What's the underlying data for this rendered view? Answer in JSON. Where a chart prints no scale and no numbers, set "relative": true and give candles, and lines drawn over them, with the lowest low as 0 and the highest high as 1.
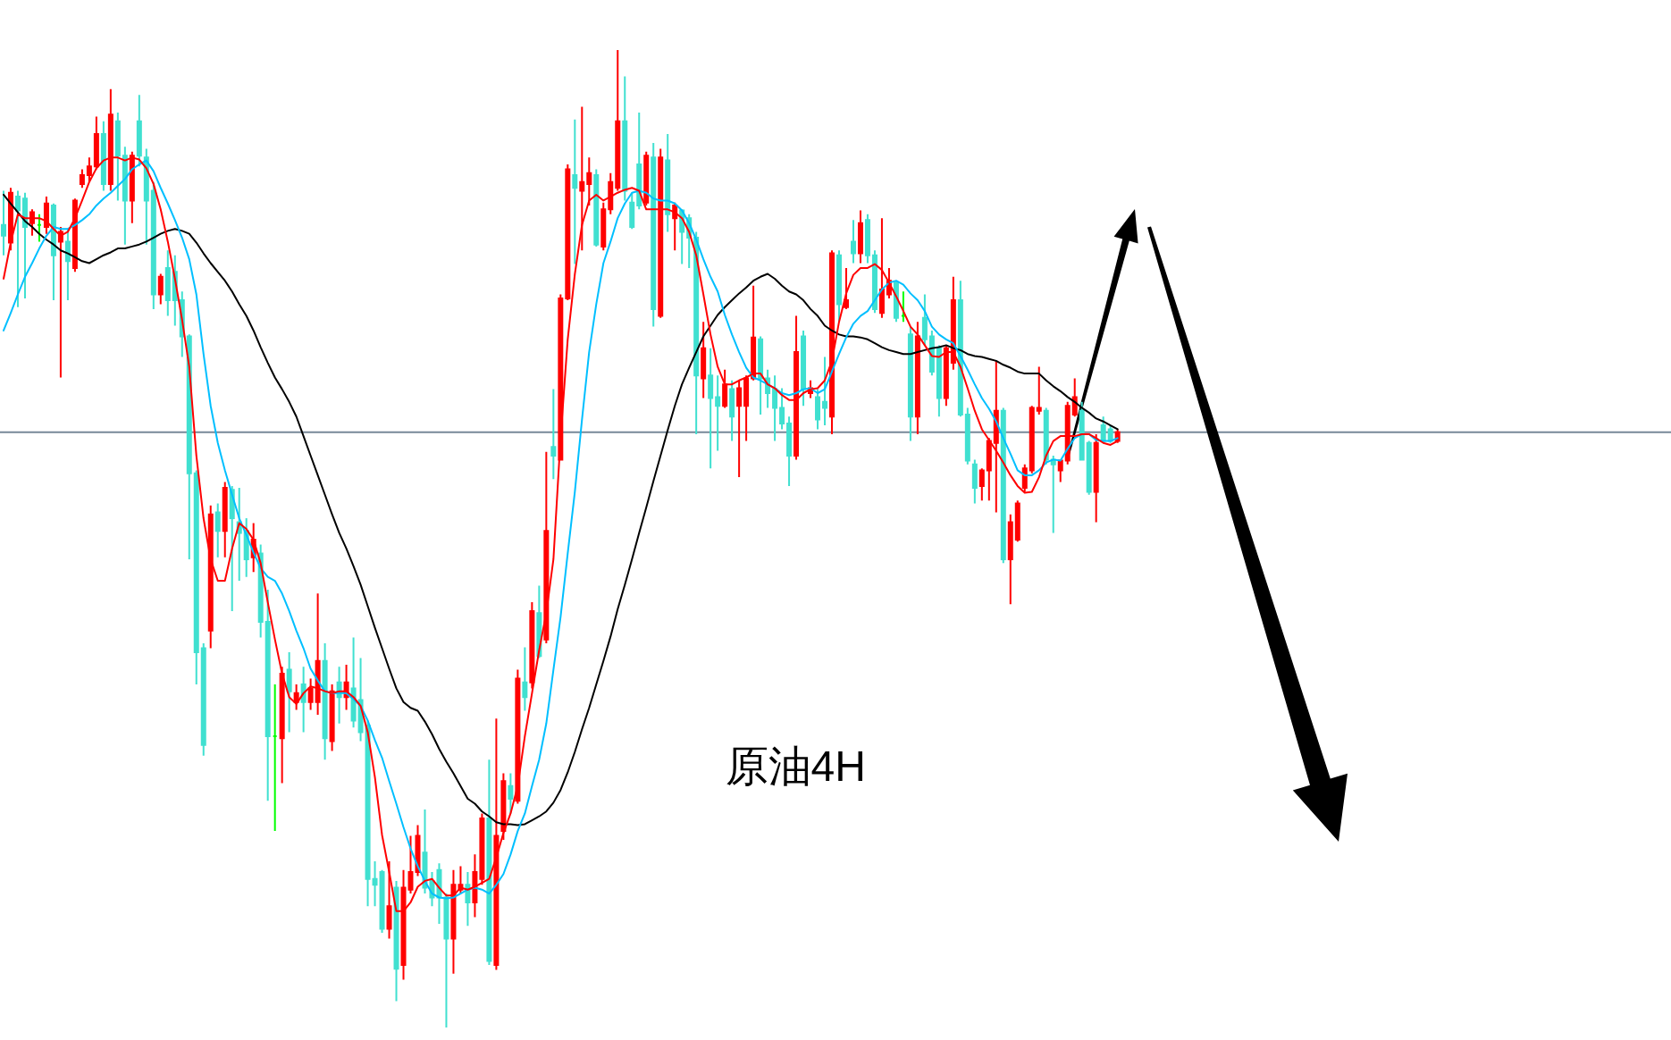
{
  "chart_data": {
    "type": "candlestick",
    "relative": true,
    "categories": [
      null,
      null,
      null,
      null,
      null,
      null,
      null,
      null,
      null,
      null,
      null,
      null,
      null,
      null,
      null,
      null,
      null,
      null,
      null,
      null,
      null,
      null,
      null,
      null,
      null,
      null,
      null,
      null,
      null,
      null,
      null,
      null,
      null,
      null,
      null,
      null,
      null,
      null,
      null,
      null,
      null,
      null,
      null,
      null,
      null,
      null,
      null,
      null,
      null,
      null,
      null,
      null,
      null,
      null,
      null,
      null,
      null,
      null,
      null,
      null,
      null,
      null,
      null,
      null,
      null,
      null,
      null,
      null,
      null,
      null,
      null,
      null,
      null,
      null,
      null,
      null,
      null,
      null,
      null,
      null,
      null,
      null,
      null,
      null,
      null,
      null,
      null,
      null,
      null,
      null,
      null,
      null,
      null,
      null,
      null,
      null,
      null,
      null,
      null,
      null,
      null,
      null,
      null,
      null,
      null,
      null,
      null,
      null,
      null,
      null,
      null,
      null,
      null,
      null,
      null,
      null,
      null,
      null,
      null,
      null,
      null,
      null,
      null,
      null,
      null,
      null,
      null,
      null,
      null,
      null,
      null,
      null,
      null,
      null,
      null,
      null,
      null,
      null,
      null,
      null,
      null,
      null,
      null,
      null,
      null,
      null,
      null,
      null,
      null,
      null,
      null,
      null,
      null,
      null,
      null,
      null,
      null
    ],
    "ohlc": [
      [
        0.821,
        0.856,
        0.79,
        0.81
      ],
      [
        0.803,
        0.859,
        0.795,
        0.854
      ],
      [
        0.85,
        0.856,
        0.737,
        0.836
      ],
      [
        0.848,
        0.854,
        0.746,
        0.819
      ],
      [
        0.823,
        0.837,
        0.81,
        0.834
      ],
      [
        0.821,
        0.832,
        0.804,
        0.821
      ],
      [
        0.819,
        0.85,
        0.812,
        0.843
      ],
      [
        0.841,
        0.843,
        0.744,
        0.79
      ],
      [
        0.804,
        0.819,
        0.665,
        0.814
      ],
      [
        0.804,
        0.817,
        0.744,
        0.784
      ],
      [
        0.777,
        0.848,
        0.773,
        0.846
      ],
      [
        0.863,
        0.878,
        0.859,
        0.872
      ],
      [
        0.872,
        0.89,
        0.865,
        0.881
      ],
      [
        0.881,
        0.932,
        0.878,
        0.914
      ],
      [
        0.914,
        0.927,
        0.856,
        0.863
      ],
      [
        0.863,
        0.96,
        0.856,
        0.934
      ],
      [
        0.927,
        0.936,
        0.846,
        0.892
      ],
      [
        0.892,
        0.901,
        0.801,
        0.846
      ],
      [
        0.846,
        0.896,
        0.823,
        0.892
      ],
      [
        0.927,
        0.954,
        0.881,
        0.892
      ],
      [
        0.89,
        0.899,
        0.801,
        0.846
      ],
      [
        0.856,
        0.865,
        0.735,
        0.75
      ],
      [
        0.75,
        0.771,
        0.74,
        0.768
      ],
      [
        0.777,
        0.795,
        0.728,
        0.744
      ],
      [
        0.773,
        0.79,
        0.718,
        0.744
      ],
      [
        0.744,
        0.753,
        0.686,
        0.707
      ],
      [
        0.707,
        0.709,
        0.479,
        0.567
      ],
      [
        0.567,
        0.57,
        0.351,
        0.384
      ],
      [
        0.388,
        0.393,
        0.278,
        0.289
      ],
      [
        0.406,
        0.534,
        0.388,
        0.525
      ],
      [
        0.527,
        0.536,
        0.481,
        0.508
      ],
      [
        0.508,
        0.558,
        0.481,
        0.552
      ],
      [
        0.55,
        0.554,
        0.426,
        0.521
      ],
      [
        0.517,
        0.552,
        0.457,
        0.506
      ],
      [
        0.508,
        0.521,
        0.461,
        0.479
      ],
      [
        0.481,
        0.516,
        0.466,
        0.499
      ],
      [
        0.485,
        0.494,
        0.399,
        0.415
      ],
      [
        0.415,
        0.448,
        0.232,
        0.298
      ],
      [
        0.298,
        0.351,
        0.201,
        0.298
      ],
      [
        0.296,
        0.369,
        0.25,
        0.362
      ],
      [
        0.366,
        0.384,
        0.302,
        0.344
      ],
      [
        0.333,
        0.351,
        0.325,
        0.342
      ],
      [
        0.351,
        0.369,
        0.302,
        0.333
      ],
      [
        0.333,
        0.357,
        0.325,
        0.347
      ],
      [
        0.333,
        0.444,
        0.32,
        0.375
      ],
      [
        0.375,
        0.393,
        0.274,
        0.296
      ],
      [
        0.293,
        0.351,
        0.283,
        0.344
      ],
      [
        0.353,
        0.369,
        0.311,
        0.338
      ],
      [
        0.338,
        0.371,
        0.325,
        0.353
      ],
      [
        0.347,
        0.399,
        0.307,
        0.314
      ],
      [
        0.335,
        0.378,
        0.293,
        0.302
      ],
      [
        0.309,
        0.314,
        0.124,
        0.152
      ],
      [
        0.152,
        0.17,
        0.124,
        0.146
      ],
      [
        0.159,
        0.161,
        0.097,
        0.101
      ],
      [
        0.101,
        0.17,
        0.091,
        0.124
      ],
      [
        0.143,
        0.15,
        0.027,
        0.06
      ],
      [
        0.064,
        0.161,
        0.049,
        0.143
      ],
      [
        0.141,
        0.196,
        0.137,
        0.159
      ],
      [
        0.159,
        0.207,
        0.155,
        0.196
      ],
      [
        0.179,
        0.223,
        0.137,
        0.143
      ],
      [
        0.15,
        0.159,
        0.124,
        0.133
      ],
      [
        0.161,
        0.168,
        0.106,
        0.133
      ],
      [
        0.133,
        0.137,
        0.0,
        0.091
      ],
      [
        0.091,
        0.161,
        0.055,
        0.146
      ],
      [
        0.141,
        0.165,
        0.137,
        0.146
      ],
      [
        0.146,
        0.159,
        0.104,
        0.128
      ],
      [
        0.128,
        0.177,
        0.113,
        0.159
      ],
      [
        0.152,
        0.219,
        0.146,
        0.214
      ],
      [
        0.214,
        0.274,
        0.064,
        0.068
      ],
      [
        0.064,
        0.316,
        0.059,
        0.196
      ],
      [
        0.201,
        0.26,
        0.192,
        0.252
      ],
      [
        0.247,
        0.26,
        0.219,
        0.234
      ],
      [
        0.232,
        0.366,
        0.229,
        0.357
      ],
      [
        0.353,
        0.389,
        0.324,
        0.338
      ],
      [
        0.353,
        0.435,
        0.347,
        0.426
      ],
      [
        0.424,
        0.452,
        0.378,
        0.38
      ],
      [
        0.397,
        0.589,
        0.393,
        0.508
      ],
      [
        0.594,
        0.653,
        0.561,
        0.585
      ],
      [
        0.581,
        0.75,
        0.58,
        0.746
      ],
      [
        0.746,
        0.883,
        0.744,
        0.878
      ],
      [
        0.872,
        0.929,
        0.781,
        0.859
      ],
      [
        0.856,
        0.942,
        0.795,
        0.865
      ],
      [
        0.863,
        0.89,
        0.841,
        0.874
      ],
      [
        0.872,
        0.878,
        0.799,
        0.801
      ],
      [
        0.799,
        0.844,
        0.795,
        0.837
      ],
      [
        0.837,
        0.874,
        0.832,
        0.865
      ],
      [
        0.859,
        1.0,
        0.856,
        0.927
      ],
      [
        0.927,
        0.973,
        0.846,
        0.856
      ],
      [
        0.844,
        0.854,
        0.817,
        0.819
      ],
      [
        0.883,
        0.936,
        0.837,
        0.841
      ],
      [
        0.844,
        0.896,
        0.841,
        0.892
      ],
      [
        0.89,
        0.905,
        0.717,
        0.735
      ],
      [
        0.728,
        0.899,
        0.726,
        0.89
      ],
      [
        0.887,
        0.914,
        0.814,
        0.832
      ],
      [
        0.828,
        0.844,
        0.795,
        0.841
      ],
      [
        0.836,
        0.837,
        0.781,
        0.814
      ],
      [
        0.828,
        0.832,
        0.777,
        0.808
      ],
      [
        0.808,
        0.814,
        0.607,
        0.667
      ],
      [
        0.664,
        0.722,
        0.644,
        0.695
      ],
      [
        0.667,
        0.695,
        0.572,
        0.644
      ],
      [
        0.645,
        0.667,
        0.59,
        0.636
      ],
      [
        0.636,
        0.673,
        0.634,
        0.658
      ],
      [
        0.653,
        0.662,
        0.6,
        0.625
      ],
      [
        0.636,
        0.662,
        0.563,
        0.654
      ],
      [
        0.636,
        0.667,
        0.6,
        0.664
      ],
      [
        0.664,
        0.759,
        0.662,
        0.706
      ],
      [
        0.704,
        0.707,
        0.627,
        0.664
      ],
      [
        0.664,
        0.673,
        0.634,
        0.649
      ],
      [
        0.653,
        0.667,
        0.6,
        0.634
      ],
      [
        0.634,
        0.654,
        0.612,
        0.618
      ],
      [
        0.618,
        0.625,
        0.554,
        0.585
      ],
      [
        0.585,
        0.728,
        0.581,
        0.691
      ],
      [
        0.707,
        0.713,
        0.636,
        0.653
      ],
      [
        0.649,
        0.662,
        0.644,
        0.654
      ],
      [
        0.645,
        0.653,
        0.612,
        0.622
      ],
      [
        0.64,
        0.686,
        0.616,
        0.634
      ],
      [
        0.625,
        0.795,
        0.607,
        0.792
      ],
      [
        0.79,
        0.795,
        0.722,
        0.74
      ],
      [
        0.737,
        0.777,
        0.735,
        0.744
      ],
      [
        0.804,
        0.826,
        0.782,
        0.792
      ],
      [
        0.792,
        0.836,
        0.782,
        0.823
      ],
      [
        0.826,
        0.832,
        0.782,
        0.79
      ],
      [
        0.79,
        0.795,
        0.731,
        0.735
      ],
      [
        0.731,
        0.828,
        0.726,
        0.755
      ],
      [
        0.75,
        0.777,
        0.746,
        0.764
      ],
      [
        0.762,
        0.764,
        0.722,
        0.726
      ],
      [
        0.728,
        0.753,
        0.722,
        0.728
      ],
      [
        0.709,
        0.717,
        0.6,
        0.625
      ],
      [
        0.625,
        0.722,
        0.607,
        0.707
      ],
      [
        0.726,
        0.75,
        0.698,
        0.704
      ],
      [
        0.707,
        0.713,
        0.667,
        0.671
      ],
      [
        0.695,
        0.698,
        0.625,
        0.644
      ],
      [
        0.644,
        0.698,
        0.636,
        0.695
      ],
      [
        0.68,
        0.768,
        0.673,
        0.744
      ],
      [
        0.744,
        0.764,
        0.625,
        0.627
      ],
      [
        0.627,
        0.634,
        0.576,
        0.58
      ],
      [
        0.576,
        0.581,
        0.536,
        0.552
      ],
      [
        0.554,
        0.572,
        0.539,
        0.57
      ],
      [
        0.57,
        0.603,
        0.539,
        0.6
      ],
      [
        0.598,
        0.682,
        0.527,
        0.631
      ],
      [
        0.631,
        0.634,
        0.475,
        0.479
      ],
      [
        0.479,
        0.525,
        0.433,
        0.517
      ],
      [
        0.499,
        0.539,
        0.497,
        0.536
      ],
      [
        0.552,
        0.576,
        0.548,
        0.572
      ],
      [
        0.57,
        0.636,
        0.567,
        0.634
      ],
      [
        0.631,
        0.676,
        0.627,
        0.634
      ],
      [
        0.631,
        0.634,
        0.576,
        0.581
      ],
      [
        0.581,
        0.585,
        0.506,
        0.576
      ],
      [
        0.57,
        0.581,
        0.558,
        0.58
      ],
      [
        0.58,
        0.64,
        0.576,
        0.636
      ],
      [
        0.627,
        0.664,
        0.625,
        0.645
      ],
      [
        0.631,
        0.64,
        0.58,
        0.581
      ],
      [
        0.598,
        0.6,
        0.545,
        0.548
      ],
      [
        0.548,
        0.607,
        0.517,
        0.598
      ],
      [
        0.616,
        0.625,
        0.598,
        0.6
      ],
      [
        0.612,
        0.616,
        0.598,
        0.6
      ],
      [
        0.6,
        0.612,
        0.598,
        0.609
      ]
    ],
    "colors": [
      "#40e0d0",
      "#ff0000",
      "#40e0d0",
      "#40e0d0",
      "#ff0000",
      "#00ff00",
      "#ff0000",
      "#40e0d0",
      "#ff0000",
      "#40e0d0",
      "#ff0000",
      "#ff0000",
      "#ff0000",
      "#ff0000",
      "#40e0d0",
      "#ff0000",
      "#40e0d0",
      "#40e0d0",
      "#ff0000",
      "#40e0d0",
      "#40e0d0",
      "#40e0d0",
      "#ff0000",
      "#40e0d0",
      "#40e0d0",
      "#40e0d0",
      "#40e0d0",
      "#40e0d0",
      "#40e0d0",
      "#ff0000",
      "#40e0d0",
      "#ff0000",
      "#40e0d0",
      "#40e0d0",
      "#40e0d0",
      "#ff0000",
      "#40e0d0",
      "#40e0d0",
      "#00ff00",
      "#ff0000",
      "#40e0d0",
      "#ff0000",
      "#40e0d0",
      "#ff0000",
      "#ff0000",
      "#40e0d0",
      "#ff0000",
      "#40e0d0",
      "#ff0000",
      "#40e0d0",
      "#40e0d0",
      "#40e0d0",
      "#40e0d0",
      "#40e0d0",
      "#ff0000",
      "#40e0d0",
      "#ff0000",
      "#ff0000",
      "#ff0000",
      "#40e0d0",
      "#40e0d0",
      "#40e0d0",
      "#40e0d0",
      "#ff0000",
      "#ff0000",
      "#40e0d0",
      "#ff0000",
      "#ff0000",
      "#40e0d0",
      "#ff0000",
      "#ff0000",
      "#40e0d0",
      "#ff0000",
      "#40e0d0",
      "#ff0000",
      "#40e0d0",
      "#ff0000",
      "#40e0d0",
      "#ff0000",
      "#ff0000",
      "#40e0d0",
      "#ff0000",
      "#ff0000",
      "#40e0d0",
      "#ff0000",
      "#ff0000",
      "#ff0000",
      "#40e0d0",
      "#40e0d0",
      "#40e0d0",
      "#ff0000",
      "#40e0d0",
      "#ff0000",
      "#40e0d0",
      "#ff0000",
      "#40e0d0",
      "#40e0d0",
      "#40e0d0",
      "#ff0000",
      "#40e0d0",
      "#40e0d0",
      "#ff0000",
      "#40e0d0",
      "#ff0000",
      "#ff0000",
      "#ff0000",
      "#40e0d0",
      "#40e0d0",
      "#40e0d0",
      "#40e0d0",
      "#40e0d0",
      "#ff0000",
      "#40e0d0",
      "#ff0000",
      "#40e0d0",
      "#40e0d0",
      "#ff0000",
      "#40e0d0",
      "#ff0000",
      "#40e0d0",
      "#ff0000",
      "#40e0d0",
      "#40e0d0",
      "#ff0000",
      "#ff0000",
      "#40e0d0",
      "#00ff00",
      "#40e0d0",
      "#ff0000",
      "#40e0d0",
      "#40e0d0",
      "#40e0d0",
      "#ff0000",
      "#ff0000",
      "#40e0d0",
      "#40e0d0",
      "#40e0d0",
      "#ff0000",
      "#ff0000",
      "#ff0000",
      "#40e0d0",
      "#ff0000",
      "#ff0000",
      "#ff0000",
      "#ff0000",
      "#ff0000",
      "#40e0d0",
      "#40e0d0",
      "#ff0000",
      "#ff0000",
      "#ff0000",
      "#40e0d0",
      "#40e0d0",
      "#ff0000",
      "#40e0d0",
      "#40e0d0",
      "#ff0000"
    ],
    "series": [
      {
        "type": "line",
        "color": "#000000",
        "values": [
          0.852,
          0.843,
          0.834,
          0.825,
          0.819,
          0.812,
          0.806,
          0.801,
          0.795,
          0.792,
          0.788,
          0.784,
          0.782,
          0.786,
          0.79,
          0.793,
          0.797,
          0.797,
          0.799,
          0.801,
          0.804,
          0.808,
          0.812,
          0.815,
          0.817,
          0.815,
          0.812,
          0.803,
          0.792,
          0.782,
          0.773,
          0.764,
          0.753,
          0.74,
          0.728,
          0.713,
          0.696,
          0.68,
          0.665,
          0.653,
          0.64,
          0.625,
          0.605,
          0.585,
          0.565,
          0.545,
          0.525,
          0.506,
          0.49,
          0.472,
          0.453,
          0.431,
          0.409,
          0.388,
          0.367,
          0.347,
          0.333,
          0.327,
          0.324,
          0.313,
          0.3,
          0.285,
          0.272,
          0.26,
          0.247,
          0.234,
          0.229,
          0.221,
          0.216,
          0.21,
          0.208,
          0.208,
          0.207,
          0.208,
          0.212,
          0.216,
          0.221,
          0.23,
          0.243,
          0.261,
          0.282,
          0.305,
          0.327,
          0.351,
          0.375,
          0.4,
          0.428,
          0.453,
          0.479,
          0.506,
          0.532,
          0.559,
          0.585,
          0.611,
          0.636,
          0.658,
          0.675,
          0.691,
          0.707,
          0.718,
          0.729,
          0.737,
          0.744,
          0.751,
          0.757,
          0.764,
          0.768,
          0.771,
          0.766,
          0.759,
          0.753,
          0.75,
          0.744,
          0.735,
          0.728,
          0.718,
          0.713,
          0.709,
          0.707,
          0.707,
          0.706,
          0.704,
          0.7,
          0.696,
          0.693,
          0.691,
          0.689,
          0.689,
          0.691,
          0.693,
          0.695,
          0.696,
          0.698,
          0.695,
          0.693,
          0.689,
          0.687,
          0.686,
          0.684,
          0.682,
          0.678,
          0.675,
          0.671,
          0.669,
          0.669,
          0.669,
          0.662,
          0.656,
          0.651,
          0.645,
          0.64,
          0.634,
          0.629,
          0.623,
          0.62,
          0.616,
          0.612
        ]
      },
      {
        "type": "line",
        "color": "#00bfff",
        "values": [
          0.713,
          0.731,
          0.75,
          0.768,
          0.782,
          0.797,
          0.81,
          0.819,
          0.817,
          0.817,
          0.821,
          0.826,
          0.832,
          0.841,
          0.848,
          0.854,
          0.861,
          0.868,
          0.878,
          0.883,
          0.887,
          0.876,
          0.859,
          0.843,
          0.826,
          0.808,
          0.786,
          0.75,
          0.689,
          0.636,
          0.598,
          0.57,
          0.545,
          0.521,
          0.504,
          0.486,
          0.47,
          0.461,
          0.457,
          0.444,
          0.426,
          0.406,
          0.388,
          0.367,
          0.355,
          0.344,
          0.342,
          0.342,
          0.342,
          0.336,
          0.329,
          0.314,
          0.294,
          0.276,
          0.252,
          0.229,
          0.205,
          0.183,
          0.165,
          0.15,
          0.137,
          0.133,
          0.132,
          0.133,
          0.137,
          0.141,
          0.143,
          0.141,
          0.137,
          0.146,
          0.157,
          0.177,
          0.201,
          0.219,
          0.247,
          0.274,
          0.311,
          0.366,
          0.42,
          0.485,
          0.548,
          0.622,
          0.691,
          0.74,
          0.782,
          0.804,
          0.828,
          0.843,
          0.854,
          0.856,
          0.854,
          0.848,
          0.846,
          0.846,
          0.843,
          0.836,
          0.823,
          0.806,
          0.786,
          0.768,
          0.753,
          0.729,
          0.709,
          0.691,
          0.675,
          0.665,
          0.662,
          0.658,
          0.654,
          0.649,
          0.647,
          0.649,
          0.653,
          0.654,
          0.649,
          0.653,
          0.671,
          0.689,
          0.706,
          0.72,
          0.728,
          0.733,
          0.744,
          0.755,
          0.762,
          0.764,
          0.76,
          0.751,
          0.744,
          0.733,
          0.717,
          0.709,
          0.704,
          0.7,
          0.687,
          0.673,
          0.658,
          0.644,
          0.633,
          0.62,
          0.603,
          0.587,
          0.57,
          0.565,
          0.565,
          0.57,
          0.578,
          0.581,
          0.58,
          0.592,
          0.603,
          0.607,
          0.607,
          0.601,
          0.6,
          0.6,
          0.603
        ]
      },
      {
        "type": "line",
        "color": "#ff0000",
        "values": [
          0.766,
          0.803,
          0.832,
          0.828,
          0.828,
          0.828,
          0.825,
          0.817,
          0.81,
          0.814,
          0.828,
          0.846,
          0.865,
          0.879,
          0.887,
          0.89,
          0.89,
          0.887,
          0.89,
          0.888,
          0.879,
          0.863,
          0.837,
          0.804,
          0.766,
          0.724,
          0.676,
          0.585,
          0.521,
          0.479,
          0.457,
          0.457,
          0.49,
          0.516,
          0.51,
          0.499,
          0.475,
          0.435,
          0.397,
          0.362,
          0.338,
          0.331,
          0.342,
          0.349,
          0.347,
          0.344,
          0.342,
          0.344,
          0.344,
          0.338,
          0.329,
          0.302,
          0.256,
          0.197,
          0.159,
          0.119,
          0.119,
          0.128,
          0.144,
          0.15,
          0.152,
          0.143,
          0.135,
          0.135,
          0.143,
          0.141,
          0.144,
          0.148,
          0.152,
          0.174,
          0.199,
          0.219,
          0.247,
          0.298,
          0.342,
          0.386,
          0.424,
          0.479,
          0.603,
          0.704,
          0.771,
          0.821,
          0.846,
          0.852,
          0.846,
          0.85,
          0.854,
          0.857,
          0.859,
          0.856,
          0.837,
          0.837,
          0.837,
          0.837,
          0.834,
          0.828,
          0.814,
          0.79,
          0.75,
          0.709,
          0.676,
          0.658,
          0.658,
          0.662,
          0.665,
          0.669,
          0.669,
          0.658,
          0.654,
          0.647,
          0.642,
          0.642,
          0.649,
          0.653,
          0.654,
          0.662,
          0.682,
          0.722,
          0.751,
          0.77,
          0.777,
          0.777,
          0.781,
          0.775,
          0.762,
          0.748,
          0.733,
          0.717,
          0.709,
          0.698,
          0.687,
          0.686,
          0.691,
          0.691,
          0.676,
          0.654,
          0.631,
          0.612,
          0.601,
          0.59,
          0.578,
          0.565,
          0.554,
          0.547,
          0.548,
          0.563,
          0.585,
          0.6,
          0.605,
          0.605,
          0.605,
          0.607,
          0.607,
          0.603,
          0.598,
          0.596,
          0.6
        ]
      }
    ],
    "ref_lines": [
      {
        "axis": "y",
        "value": 0.609,
        "color": "#778899"
      }
    ],
    "annotations": [
      "原油4H"
    ]
  }
}
